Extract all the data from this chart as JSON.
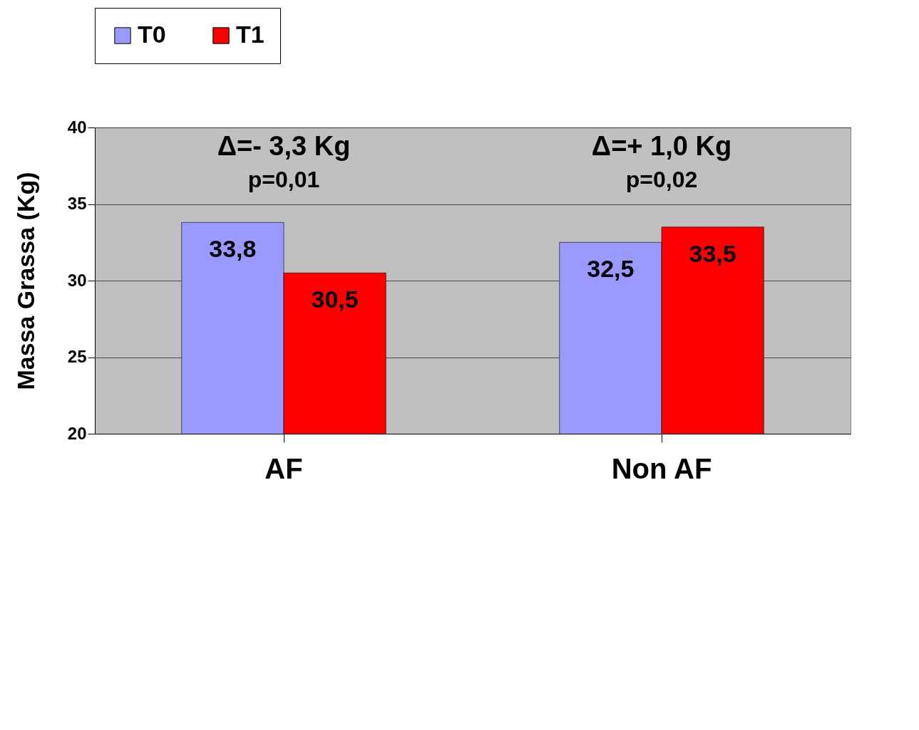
{
  "chart_data": {
    "type": "bar",
    "ylabel": "Massa Grassa (Kg)",
    "categories": [
      "AF",
      "Non AF"
    ],
    "series": [
      {
        "name": "T0",
        "color": "#9999ff",
        "values": [
          33.8,
          32.5
        ],
        "value_labels": [
          "33,8",
          "32,5"
        ]
      },
      {
        "name": "T1",
        "color": "#ff0000",
        "values": [
          30.5,
          33.5
        ],
        "value_labels": [
          "30,5",
          "33,5"
        ]
      }
    ],
    "ylim": [
      20,
      40
    ],
    "yticks": [
      20,
      25,
      30,
      35,
      40
    ],
    "grid": "y",
    "legend": "top",
    "annotations": [
      "Δ=- 3,3 Kg",
      "p=0,01",
      "Δ=+ 1,0 Kg",
      "p=0,02"
    ]
  }
}
